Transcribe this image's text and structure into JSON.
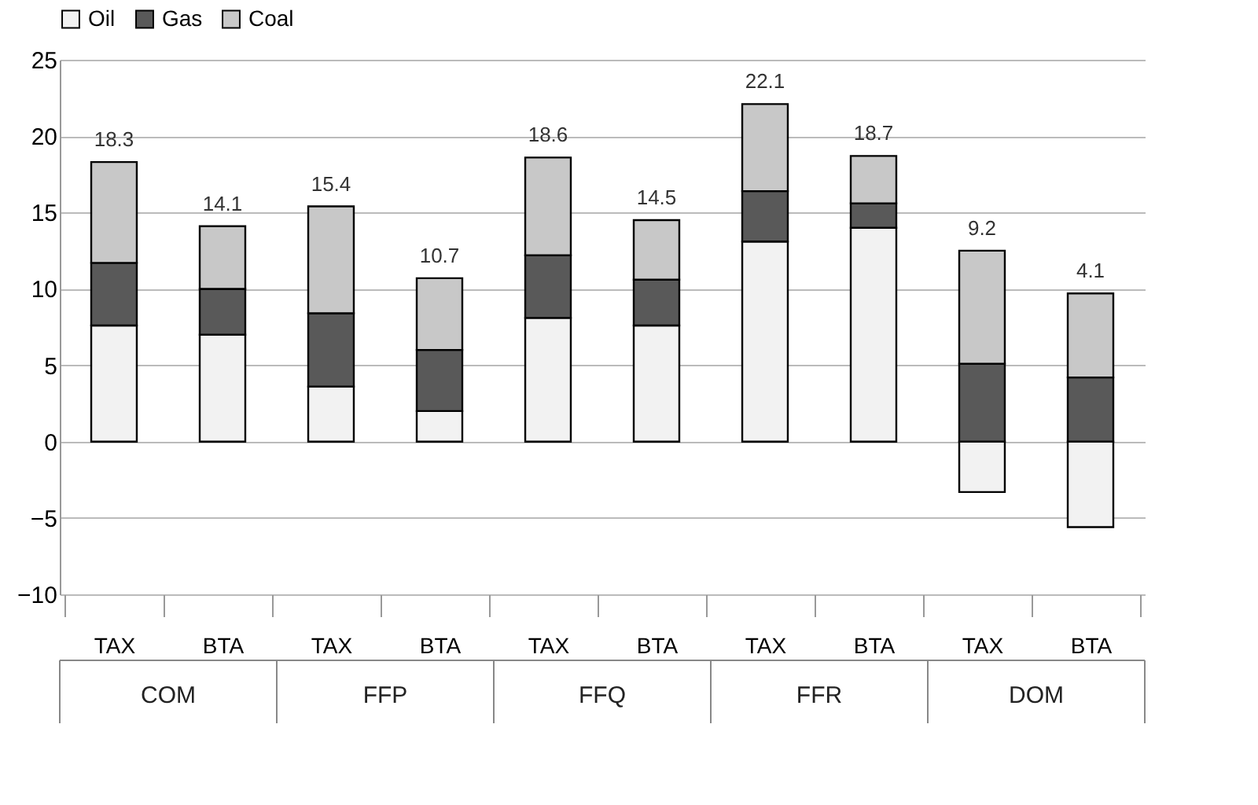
{
  "chart_data": {
    "type": "bar",
    "stacked": true,
    "categories": [
      "TAX",
      "BTA",
      "TAX",
      "BTA",
      "TAX",
      "BTA",
      "TAX",
      "BTA",
      "TAX",
      "BTA"
    ],
    "series": [
      {
        "name": "Oil",
        "color": "#f2f2f2",
        "values": [
          7.6,
          7.0,
          3.6,
          2.0,
          8.1,
          7.6,
          13.1,
          14.0,
          -3.3,
          -5.6
        ]
      },
      {
        "name": "Gas",
        "color": "#595959",
        "values": [
          4.1,
          3.0,
          4.8,
          4.0,
          4.1,
          3.0,
          3.3,
          1.6,
          5.1,
          4.2
        ]
      },
      {
        "name": "Coal",
        "color": "#c8c8c8",
        "values": [
          6.6,
          4.1,
          7.0,
          4.7,
          6.4,
          3.9,
          5.7,
          3.1,
          7.4,
          5.5
        ]
      }
    ],
    "totals": [
      "18.3",
      "14.1",
      "15.4",
      "10.7",
      "18.6",
      "14.5",
      "22.1",
      "18.7",
      "9.2",
      "4.1"
    ],
    "annotations": [
      "COM",
      "FFP",
      "FFQ",
      "FFR",
      "DOM"
    ],
    "ylim": [
      -10,
      25
    ],
    "yticks": [
      -10,
      -5,
      0,
      5,
      10,
      15,
      20,
      25
    ],
    "grid": "y",
    "legend": "top"
  }
}
